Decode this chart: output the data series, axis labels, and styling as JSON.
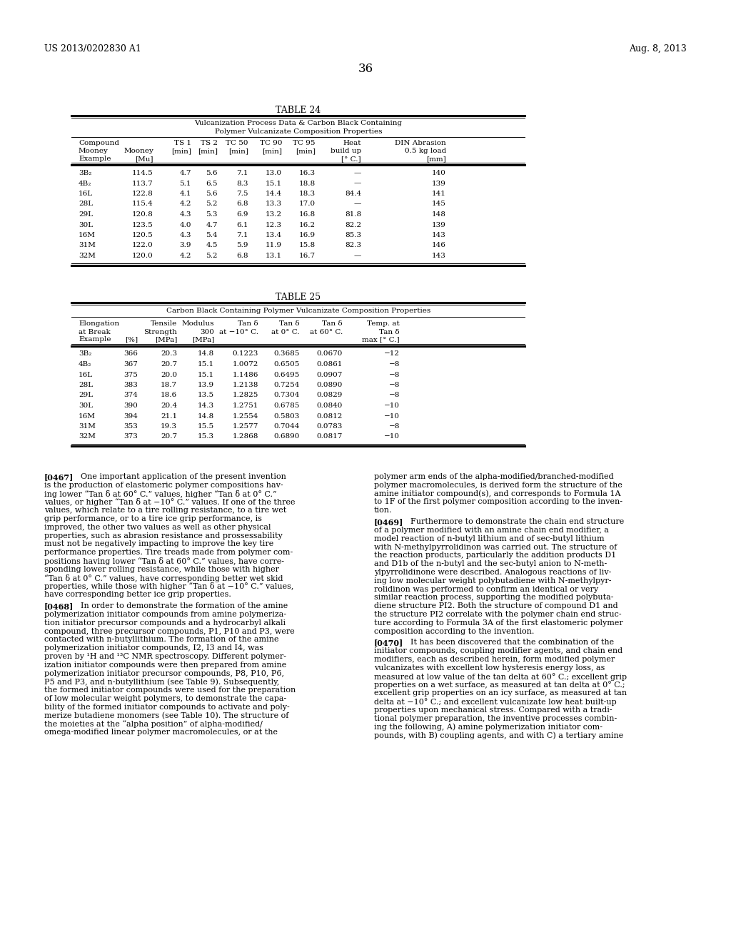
{
  "page_number": "36",
  "left_header": "US 2013/0202830 A1",
  "right_header": "Aug. 8, 2013",
  "background_color": "#ffffff",
  "table24": {
    "title": "TABLE 24",
    "subtitle1": "Vulcanization Process Data & Carbon Black Containing",
    "subtitle2": "Polymer Vulcanizate Composition Properties",
    "rows": [
      [
        "3B₂",
        "114.5",
        "4.7",
        "5.6",
        "7.1",
        "13.0",
        "16.3",
        "—",
        "140"
      ],
      [
        "4B₂",
        "113.7",
        "5.1",
        "6.5",
        "8.3",
        "15.1",
        "18.8",
        "—",
        "139"
      ],
      [
        "16L",
        "122.8",
        "4.1",
        "5.6",
        "7.5",
        "14.4",
        "18.3",
        "84.4",
        "141"
      ],
      [
        "28L",
        "115.4",
        "4.2",
        "5.2",
        "6.8",
        "13.3",
        "17.0",
        "—",
        "145"
      ],
      [
        "29L",
        "120.8",
        "4.3",
        "5.3",
        "6.9",
        "13.2",
        "16.8",
        "81.8",
        "148"
      ],
      [
        "30L",
        "123.5",
        "4.0",
        "4.7",
        "6.1",
        "12.3",
        "16.2",
        "82.2",
        "139"
      ],
      [
        "16M",
        "120.5",
        "4.3",
        "5.4",
        "7.1",
        "13.4",
        "16.9",
        "85.3",
        "143"
      ],
      [
        "31M",
        "122.0",
        "3.9",
        "4.5",
        "5.9",
        "11.9",
        "15.8",
        "82.3",
        "146"
      ],
      [
        "32M",
        "120.0",
        "4.2",
        "5.2",
        "6.8",
        "13.1",
        "16.7",
        "—",
        "143"
      ]
    ]
  },
  "table25": {
    "title": "TABLE 25",
    "subtitle": "Carbon Black Containing Polymer Vulcanizate Composition Properties",
    "rows": [
      [
        "3B₂",
        "366",
        "20.3",
        "14.8",
        "0.1223",
        "0.3685",
        "0.0670",
        "−12"
      ],
      [
        "4B₂",
        "367",
        "20.7",
        "15.1",
        "1.0072",
        "0.6505",
        "0.0861",
        "−8"
      ],
      [
        "16L",
        "375",
        "20.0",
        "15.1",
        "1.1486",
        "0.6495",
        "0.0907",
        "−8"
      ],
      [
        "28L",
        "383",
        "18.7",
        "13.9",
        "1.2138",
        "0.7254",
        "0.0890",
        "−8"
      ],
      [
        "29L",
        "374",
        "18.6",
        "13.5",
        "1.2825",
        "0.7304",
        "0.0829",
        "−8"
      ],
      [
        "30L",
        "390",
        "20.4",
        "14.3",
        "1.2751",
        "0.6785",
        "0.0840",
        "−10"
      ],
      [
        "16M",
        "394",
        "21.1",
        "14.8",
        "1.2554",
        "0.5803",
        "0.0812",
        "−10"
      ],
      [
        "31M",
        "353",
        "19.3",
        "15.5",
        "1.2577",
        "0.7044",
        "0.0783",
        "−8"
      ],
      [
        "32M",
        "373",
        "20.7",
        "15.3",
        "1.2868",
        "0.6890",
        "0.0817",
        "−10"
      ]
    ]
  },
  "left_col_lines": [
    [
      "[0467]",
      "  One important application of the present invention"
    ],
    [
      "",
      "is the production of elastomeric polymer compositions hav-"
    ],
    [
      "",
      "ing lower “Tan δ at 60° C.” values, higher “Tan δ at 0° C.”"
    ],
    [
      "",
      "values, or higher “Tan δ at −10° C.” values. If one of the three"
    ],
    [
      "",
      "values, which relate to a tire rolling resistance, to a tire wet"
    ],
    [
      "",
      "grip performance, or to a tire ice grip performance, is"
    ],
    [
      "",
      "improved, the other two values as well as other physical"
    ],
    [
      "",
      "properties, such as abrasion resistance and prossessability"
    ],
    [
      "",
      "must not be negatively impacting to improve the key tire"
    ],
    [
      "",
      "performance properties. Tire treads made from polymer com-"
    ],
    [
      "",
      "positions having lower “Tan δ at 60° C.” values, have corre-"
    ],
    [
      "",
      "sponding lower rolling resistance, while those with higher"
    ],
    [
      "",
      "“Tan δ at 0° C.” values, have corresponding better wet skid"
    ],
    [
      "",
      "properties, while those with higher “Tan δ at −10° C.” values,"
    ],
    [
      "",
      "have corresponding better ice grip properties."
    ],
    [
      "",
      ""
    ],
    [
      "[0468]",
      "  In order to demonstrate the formation of the amine"
    ],
    [
      "",
      "polymerization initiator compounds from amine polymeriza-"
    ],
    [
      "",
      "tion initiator precursor compounds and a hydrocarbyl alkali"
    ],
    [
      "",
      "compound, three precursor compounds, P1, P10 and P3, were"
    ],
    [
      "",
      "contacted with n-butyllithium. The formation of the amine"
    ],
    [
      "",
      "polymerization initiator compounds, I2, I3 and I4, was"
    ],
    [
      "",
      "proven by ¹H and ¹³C NMR spectroscopy. Different polymer-"
    ],
    [
      "",
      "ization initiator compounds were then prepared from amine"
    ],
    [
      "",
      "polymerization initiator precursor compounds, P8, P10, P6,"
    ],
    [
      "",
      "P5 and P3, and n-butyllithium (see Table 9). Subsequently,"
    ],
    [
      "",
      "the formed initiator compounds were used for the preparation"
    ],
    [
      "",
      "of low molecular weight polymers, to demonstrate the capa-"
    ],
    [
      "",
      "bility of the formed initiator compounds to activate and poly-"
    ],
    [
      "",
      "merize butadiene monomers (see Table 10). The structure of"
    ],
    [
      "",
      "the moieties at the “alpha position” of alpha-modified/"
    ],
    [
      "",
      "omega-modified linear polymer macromolecules, or at the"
    ]
  ],
  "right_col_lines": [
    [
      "",
      "polymer arm ends of the alpha-modified/branched-modified"
    ],
    [
      "",
      "polymer macromolecules, is derived form the structure of the"
    ],
    [
      "",
      "amine initiator compound(s), and corresponds to Formula 1A"
    ],
    [
      "",
      "to 1F of the first polymer composition according to the inven-"
    ],
    [
      "",
      "tion."
    ],
    [
      "",
      ""
    ],
    [
      "[0469]",
      "  Furthermore to demonstrate the chain end structure"
    ],
    [
      "",
      "of a polymer modified with an amine chain end modifier, a"
    ],
    [
      "",
      "model reaction of n-butyl lithium and of sec-butyl lithium"
    ],
    [
      "",
      "with N-methylpyrrolidinon was carried out. The structure of"
    ],
    [
      "",
      "the reaction products, particularly the addition products D1"
    ],
    [
      "",
      "and D1b of the n-butyl and the sec-butyl anion to N-meth-"
    ],
    [
      "",
      "ylpyrrolidinone were described. Analogous reactions of liv-"
    ],
    [
      "",
      "ing low molecular weight polybutadiene with N-methylpyr-"
    ],
    [
      "",
      "rolidinon was performed to confirm an identical or very"
    ],
    [
      "",
      "similar reaction process, supporting the modified polybuta-"
    ],
    [
      "",
      "diene structure PI2. Both the structure of compound D1 and"
    ],
    [
      "",
      "the structure PI2 correlate with the polymer chain end struc-"
    ],
    [
      "",
      "ture according to Formula 3A of the first elastomeric polymer"
    ],
    [
      "",
      "composition according to the invention."
    ],
    [
      "",
      ""
    ],
    [
      "[0470]",
      "  It has been discovered that the combination of the"
    ],
    [
      "",
      "initiator compounds, coupling modifier agents, and chain end"
    ],
    [
      "",
      "modifiers, each as described herein, form modified polymer"
    ],
    [
      "",
      "vulcanizates with excellent low hysteresis energy loss, as"
    ],
    [
      "",
      "measured at low value of the tan delta at 60° C.; excellent grip"
    ],
    [
      "",
      "properties on a wet surface, as measured at tan delta at 0° C.;"
    ],
    [
      "",
      "excellent grip properties on an icy surface, as measured at tan"
    ],
    [
      "",
      "delta at −10° C.; and excellent vulcanizate low heat built-up"
    ],
    [
      "",
      "properties upon mechanical stress. Compared with a tradi-"
    ],
    [
      "",
      "tional polymer preparation, the inventive processes combin-"
    ],
    [
      "",
      "ing the following, A) amine polymerization initiator com-"
    ],
    [
      "",
      "pounds, with B) coupling agents, and with C) a tertiary amine"
    ]
  ]
}
